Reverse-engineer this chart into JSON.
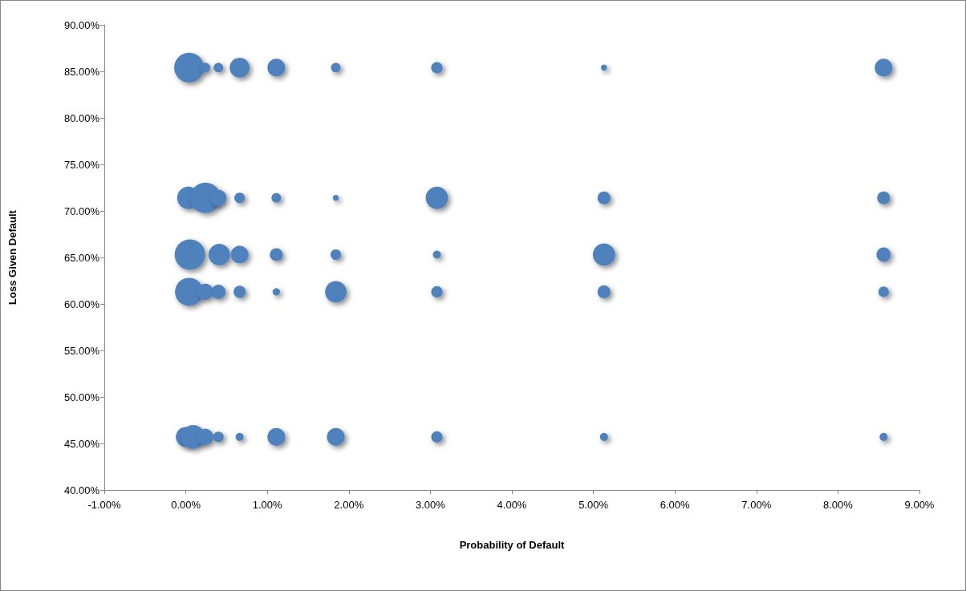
{
  "chart_data": {
    "type": "bubble",
    "xlabel": "Probability of Default",
    "ylabel": "Loss Given Default",
    "xlim": [
      -1,
      9
    ],
    "ylim": [
      40,
      90
    ],
    "xticks": [
      {
        "value": -1,
        "label": "-1.00%"
      },
      {
        "value": 0,
        "label": "0.00%"
      },
      {
        "value": 1,
        "label": "1.00%"
      },
      {
        "value": 2,
        "label": "2.00%"
      },
      {
        "value": 3,
        "label": "3.00%"
      },
      {
        "value": 4,
        "label": "4.00%"
      },
      {
        "value": 5,
        "label": "5.00%"
      },
      {
        "value": 6,
        "label": "6.00%"
      },
      {
        "value": 7,
        "label": "7.00%"
      },
      {
        "value": 8,
        "label": "8.00%"
      },
      {
        "value": 9,
        "label": "9.00%"
      }
    ],
    "yticks": [
      {
        "value": 40,
        "label": "40.00%"
      },
      {
        "value": 45,
        "label": "45.00%"
      },
      {
        "value": 50,
        "label": "50.00%"
      },
      {
        "value": 55,
        "label": "55.00%"
      },
      {
        "value": 60,
        "label": "60.00%"
      },
      {
        "value": 65,
        "label": "65.00%"
      },
      {
        "value": 70,
        "label": "70.00%"
      },
      {
        "value": 75,
        "label": "75.00%"
      },
      {
        "value": 80,
        "label": "80.00%"
      },
      {
        "value": 85,
        "label": "85.00%"
      },
      {
        "value": 90,
        "label": "90.00%"
      }
    ],
    "grid": false,
    "series": [
      {
        "color": "#4f81bd",
        "x": [
          0.04,
          0.24,
          0.4,
          0.66,
          1.11,
          1.84,
          3.08,
          5.13,
          8.56,
          0.03,
          0.24,
          0.4,
          0.66,
          1.11,
          1.84,
          3.08,
          5.13,
          8.56,
          0.05,
          0.41,
          0.66,
          1.11,
          1.84,
          3.08,
          5.13,
          8.56,
          0.04,
          0.24,
          0.4,
          0.66,
          1.11,
          1.84,
          3.08,
          5.13,
          8.56,
          0.0,
          0.09,
          0.24,
          0.4,
          0.66,
          1.11,
          1.84,
          3.08,
          5.13,
          8.56
        ],
        "values": [
          85.4,
          85.4,
          85.4,
          85.4,
          85.4,
          85.4,
          85.4,
          85.4,
          85.4,
          71.4,
          71.4,
          71.4,
          71.4,
          71.4,
          71.4,
          71.4,
          71.4,
          71.4,
          65.3,
          65.3,
          65.3,
          65.3,
          65.3,
          65.3,
          65.3,
          65.3,
          61.3,
          61.3,
          61.3,
          61.3,
          61.3,
          61.3,
          61.3,
          61.3,
          61.3,
          45.7,
          45.7,
          45.7,
          45.7,
          45.7,
          45.7,
          45.7,
          45.7,
          45.7,
          45.7
        ],
        "sizes": [
          0.95,
          0.1,
          0.1,
          0.43,
          0.34,
          0.1,
          0.14,
          0.04,
          0.34,
          0.54,
          1,
          0.28,
          0.12,
          0.1,
          0.04,
          0.54,
          0.18,
          0.18,
          1,
          0.5,
          0.34,
          0.18,
          0.12,
          0.07,
          0.54,
          0.22,
          0.85,
          0.28,
          0.22,
          0.16,
          0.06,
          0.5,
          0.14,
          0.18,
          0.12,
          0.43,
          0.62,
          0.28,
          0.12,
          0.07,
          0.34,
          0.34,
          0.14,
          0.07,
          0.07
        ]
      }
    ]
  }
}
